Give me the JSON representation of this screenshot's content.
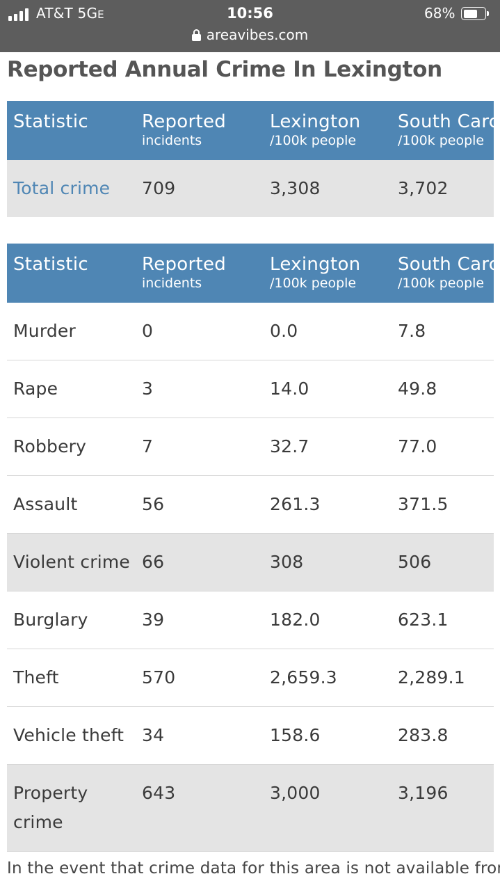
{
  "status_bar": {
    "carrier": "AT&T",
    "network": "5G",
    "network_suffix": "E",
    "time": "10:56",
    "battery_percent": "68%",
    "battery_level": 0.68,
    "url": "areavibes.com"
  },
  "page": {
    "title": "Reported Annual Crime In Lexington",
    "footer": "In the event that crime data for this area is not available from"
  },
  "table_header": {
    "col1": "Statistic",
    "col2_main": "Reported",
    "col2_sub": "incidents",
    "col3_main": "Lexington",
    "col3_sub": "/100k people",
    "col4_main": "South Carc",
    "col4_sub": "/100k people"
  },
  "total_table": {
    "rows": [
      {
        "statistic": "Total crime",
        "reported": "709",
        "local": "3,308",
        "state": "3,702"
      }
    ]
  },
  "detail_table": {
    "rows": [
      {
        "statistic": "Murder",
        "reported": "0",
        "local": "0.0",
        "state": "7.8"
      },
      {
        "statistic": "Rape",
        "reported": "3",
        "local": "14.0",
        "state": "49.8"
      },
      {
        "statistic": "Robbery",
        "reported": "7",
        "local": "32.7",
        "state": "77.0"
      },
      {
        "statistic": "Assault",
        "reported": "56",
        "local": "261.3",
        "state": "371.5"
      },
      {
        "statistic": "Violent crime",
        "reported": "66",
        "local": "308",
        "state": "506"
      },
      {
        "statistic": "Burglary",
        "reported": "39",
        "local": "182.0",
        "state": "623.1"
      },
      {
        "statistic": "Theft",
        "reported": "570",
        "local": "2,659.3",
        "state": "2,289.1"
      },
      {
        "statistic": "Vehicle theft",
        "reported": "34",
        "local": "158.6",
        "state": "283.8"
      },
      {
        "statistic": "Property",
        "statistic_line2": "crime",
        "reported": "643",
        "local": "3,000",
        "state": "3,196"
      }
    ]
  },
  "colors": {
    "header_bg": "#4f86b4",
    "link": "#4f86b4",
    "summary_row_bg": "#e4e4e4",
    "status_bar_bg": "#5d5d5d"
  }
}
